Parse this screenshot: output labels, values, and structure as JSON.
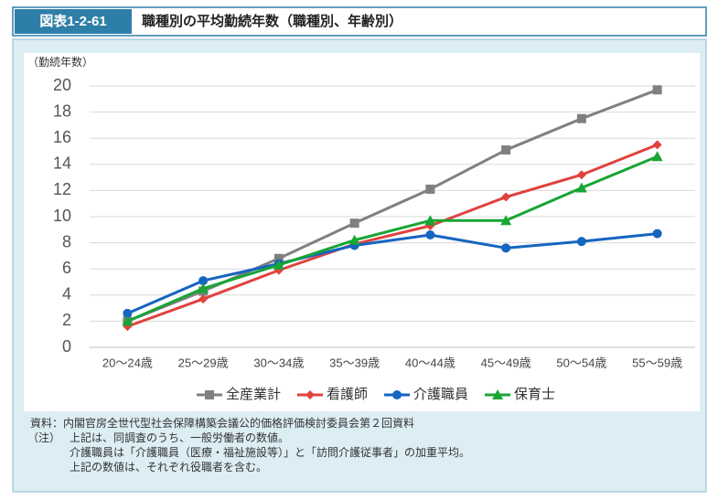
{
  "header": {
    "figure_number": "図表1-2-61",
    "title": "職種別の平均勤続年数（職種別、年齢別）"
  },
  "chart_data": {
    "type": "line",
    "ylabel": "（勤続年数）",
    "categories": [
      "20～24歳",
      "25～29歳",
      "30～34歳",
      "35～39歳",
      "40～44歳",
      "45～49歳",
      "50～54歳",
      "55～59歳"
    ],
    "series": [
      {
        "name": "全産業計",
        "color": "#808080",
        "marker": "square",
        "values": [
          2.0,
          4.3,
          6.8,
          9.5,
          12.1,
          15.1,
          17.5,
          19.7
        ]
      },
      {
        "name": "看護師",
        "color": "#e0423e",
        "marker": "diamond",
        "values": [
          1.6,
          3.7,
          5.9,
          7.9,
          9.3,
          11.5,
          13.2,
          15.5
        ]
      },
      {
        "name": "介護職員",
        "color": "#1565c0",
        "marker": "circle",
        "values": [
          2.6,
          5.1,
          6.4,
          7.8,
          8.6,
          7.6,
          8.1,
          8.7
        ]
      },
      {
        "name": "保育士",
        "color": "#17a534",
        "marker": "triangle",
        "values": [
          2.0,
          4.5,
          6.3,
          8.2,
          9.7,
          9.7,
          12.2,
          14.6
        ]
      }
    ],
    "ylim": [
      0,
      20
    ],
    "yticks": [
      0,
      2,
      4,
      6,
      8,
      10,
      12,
      14,
      16,
      18,
      20
    ],
    "grid": true,
    "legend": "bottom"
  },
  "notes": {
    "source": "資料：内閣官房全世代型社会保障構築会議公的価格評価検討委員会第２回資料",
    "note_label": "（注）",
    "lines": [
      "上記は、同調査のうち、一般労働者の数値。",
      "介護職員は「介護職員（医療・福祉施設等）」と「訪問介護従事者」の加重平均。",
      "上記の数値は、それぞれ役職者を含む。"
    ]
  }
}
